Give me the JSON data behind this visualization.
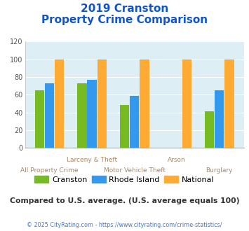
{
  "title_line1": "2019 Cranston",
  "title_line2": "Property Crime Comparison",
  "categories": [
    "All Property Crime",
    "Larceny & Theft",
    "Motor Vehicle Theft",
    "Arson",
    "Burglary"
  ],
  "cranston": [
    65,
    73,
    48,
    0,
    41
  ],
  "rhode_island": [
    73,
    77,
    59,
    0,
    65
  ],
  "national": [
    100,
    100,
    100,
    100,
    100
  ],
  "cranston_color": "#77bb22",
  "rhode_island_color": "#3399ee",
  "national_color": "#ffaa33",
  "ylim": [
    0,
    120
  ],
  "yticks": [
    0,
    20,
    40,
    60,
    80,
    100,
    120
  ],
  "title_color": "#1155cc",
  "bg_color": "#ddeef5",
  "label_color": "#aa8866",
  "note": "Compared to U.S. average. (U.S. average equals 100)",
  "note_color": "#333333",
  "copyright": "© 2025 CityRating.com - https://www.cityrating.com/crime-statistics/",
  "copyright_color": "#4477cc",
  "legend_labels": [
    "Cranston",
    "Rhode Island",
    "National"
  ],
  "bar_width": 0.22,
  "group_positions": [
    0,
    1,
    2,
    3,
    4
  ]
}
